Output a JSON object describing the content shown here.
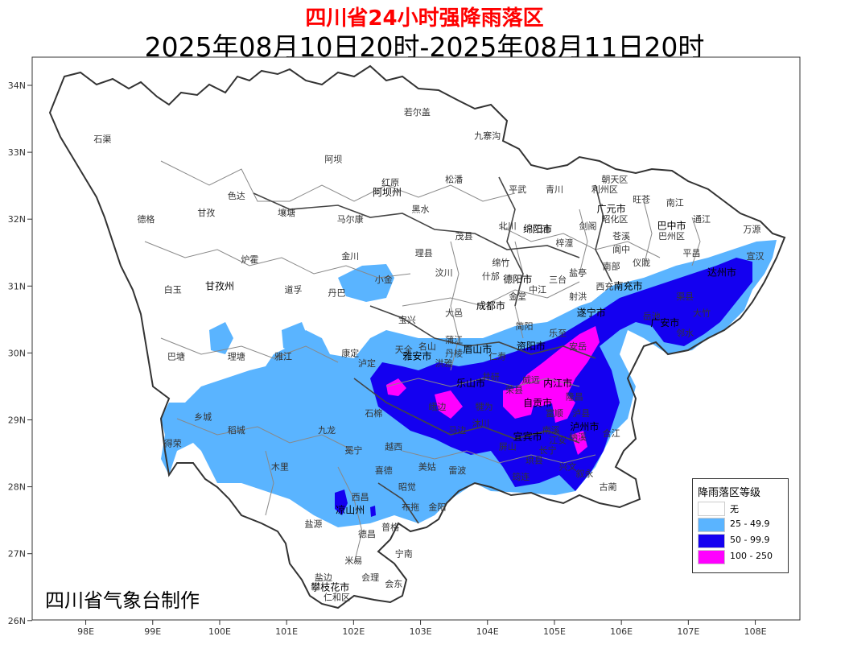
{
  "title": "四川省24小时强降雨落区",
  "period": "2025年08月10日20时-2025年08月11日20时",
  "credit": "四川省气象台制作",
  "colors": {
    "none": "#ffffff",
    "light": "#5ab4ff",
    "medium": "#1400f0",
    "heavy": "#ff00ff",
    "border": "#333333",
    "county_line": "#888888"
  },
  "legend": {
    "title": "降雨落区等级",
    "items": [
      {
        "label": "无",
        "color": "#ffffff"
      },
      {
        "label": "25 - 49.9",
        "color": "#5ab4ff"
      },
      {
        "label": "50 - 99.9",
        "color": "#1400f0"
      },
      {
        "label": "100 - 250",
        "color": "#ff00ff"
      }
    ]
  },
  "axes": {
    "lat_ticks": [
      "34N",
      "33N",
      "32N",
      "31N",
      "30N",
      "29N",
      "28N",
      "27N",
      "26N"
    ],
    "lon_ticks": [
      "98E",
      "99E",
      "100E",
      "101E",
      "102E",
      "103E",
      "104E",
      "105E",
      "106E",
      "107E",
      "108E"
    ]
  },
  "places": [
    {
      "name": "若尔盖",
      "lon": 102.95,
      "lat": 33.6,
      "main": false
    },
    {
      "name": "石渠",
      "lon": 98.25,
      "lat": 33.2,
      "main": false
    },
    {
      "name": "阿坝",
      "lon": 101.7,
      "lat": 32.9,
      "main": false
    },
    {
      "name": "九寨沟",
      "lon": 104.0,
      "lat": 33.25,
      "main": false
    },
    {
      "name": "红原",
      "lon": 102.55,
      "lat": 32.55,
      "main": false
    },
    {
      "name": "松潘",
      "lon": 103.5,
      "lat": 32.6,
      "main": false
    },
    {
      "name": "阿坝州",
      "lon": 102.5,
      "lat": 32.4,
      "main": true
    },
    {
      "name": "平武",
      "lon": 104.45,
      "lat": 32.45,
      "main": false
    },
    {
      "name": "青川",
      "lon": 105.0,
      "lat": 32.45,
      "main": false
    },
    {
      "name": "朝天区",
      "lon": 105.9,
      "lat": 32.6,
      "main": false
    },
    {
      "name": "利州区",
      "lon": 105.75,
      "lat": 32.45,
      "main": false
    },
    {
      "name": "旺苍",
      "lon": 106.3,
      "lat": 32.3,
      "main": false
    },
    {
      "name": "南江",
      "lon": 106.8,
      "lat": 32.25,
      "main": false
    },
    {
      "name": "通江",
      "lon": 107.2,
      "lat": 32.0,
      "main": false
    },
    {
      "name": "万源",
      "lon": 107.95,
      "lat": 31.85,
      "main": false
    },
    {
      "name": "巴中市",
      "lon": 106.75,
      "lat": 31.9,
      "main": true
    },
    {
      "name": "巴州区",
      "lon": 106.75,
      "lat": 31.75,
      "main": false
    },
    {
      "name": "广元市",
      "lon": 105.85,
      "lat": 32.15,
      "main": true
    },
    {
      "name": "昭化区",
      "lon": 105.9,
      "lat": 32.0,
      "main": false
    },
    {
      "name": "剑阁",
      "lon": 105.5,
      "lat": 31.9,
      "main": false
    },
    {
      "name": "苍溪",
      "lon": 106.0,
      "lat": 31.75,
      "main": false
    },
    {
      "name": "阆中",
      "lon": 106.0,
      "lat": 31.55,
      "main": false
    },
    {
      "name": "德格",
      "lon": 98.9,
      "lat": 32.0,
      "main": false
    },
    {
      "name": "甘孜",
      "lon": 99.8,
      "lat": 32.1,
      "main": false
    },
    {
      "name": "色达",
      "lon": 100.25,
      "lat": 32.35,
      "main": false
    },
    {
      "name": "壤塘",
      "lon": 101.0,
      "lat": 32.1,
      "main": false
    },
    {
      "name": "马尔康",
      "lon": 101.95,
      "lat": 32.0,
      "main": false
    },
    {
      "name": "黑水",
      "lon": 103.0,
      "lat": 32.15,
      "main": false
    },
    {
      "name": "茂县",
      "lon": 103.65,
      "lat": 31.75,
      "main": false
    },
    {
      "name": "北川",
      "lon": 104.3,
      "lat": 31.9,
      "main": false
    },
    {
      "name": "绵阳市",
      "lon": 104.75,
      "lat": 31.85,
      "main": true
    },
    {
      "name": "梓潼",
      "lon": 105.15,
      "lat": 31.65,
      "main": false
    },
    {
      "name": "江油",
      "lon": 104.8,
      "lat": 31.85,
      "main": false
    },
    {
      "name": "炉霍",
      "lon": 100.45,
      "lat": 31.4,
      "main": false
    },
    {
      "name": "甘孜州",
      "lon": 100.0,
      "lat": 31.0,
      "main": true
    },
    {
      "name": "白玉",
      "lon": 99.3,
      "lat": 30.95,
      "main": false
    },
    {
      "name": "道孚",
      "lon": 101.1,
      "lat": 30.95,
      "main": false
    },
    {
      "name": "金川",
      "lon": 101.95,
      "lat": 31.45,
      "main": false
    },
    {
      "name": "理县",
      "lon": 103.05,
      "lat": 31.5,
      "main": false
    },
    {
      "name": "汶川",
      "lon": 103.35,
      "lat": 31.2,
      "main": false
    },
    {
      "name": "小金",
      "lon": 102.45,
      "lat": 31.1,
      "main": false
    },
    {
      "name": "丹巴",
      "lon": 101.75,
      "lat": 30.9,
      "main": false
    },
    {
      "name": "绵竹",
      "lon": 104.2,
      "lat": 31.35,
      "main": false
    },
    {
      "name": "什邡",
      "lon": 104.05,
      "lat": 31.15,
      "main": false
    },
    {
      "name": "德阳市",
      "lon": 104.45,
      "lat": 31.1,
      "main": true
    },
    {
      "name": "中江",
      "lon": 104.75,
      "lat": 30.95,
      "main": false
    },
    {
      "name": "三台",
      "lon": 105.05,
      "lat": 31.1,
      "main": false
    },
    {
      "name": "盐亭",
      "lon": 105.35,
      "lat": 31.2,
      "main": false
    },
    {
      "name": "南部",
      "lon": 105.85,
      "lat": 31.3,
      "main": false
    },
    {
      "name": "仪陇",
      "lon": 106.3,
      "lat": 31.35,
      "main": false
    },
    {
      "name": "平昌",
      "lon": 107.05,
      "lat": 31.5,
      "main": false
    },
    {
      "name": "达州市",
      "lon": 107.5,
      "lat": 31.2,
      "main": true
    },
    {
      "name": "宣汉",
      "lon": 108.0,
      "lat": 31.45,
      "main": false
    },
    {
      "name": "西充",
      "lon": 105.75,
      "lat": 31.0,
      "main": false
    },
    {
      "name": "南充市",
      "lon": 106.1,
      "lat": 31.0,
      "main": true
    },
    {
      "name": "渠县",
      "lon": 106.95,
      "lat": 30.85,
      "main": false
    },
    {
      "name": "大竹",
      "lon": 107.2,
      "lat": 30.6,
      "main": false
    },
    {
      "name": "射洪",
      "lon": 105.35,
      "lat": 30.85,
      "main": false
    },
    {
      "name": "遂宁市",
      "lon": 105.55,
      "lat": 30.6,
      "main": true
    },
    {
      "name": "岳池",
      "lon": 106.45,
      "lat": 30.55,
      "main": false
    },
    {
      "name": "广安市",
      "lon": 106.65,
      "lat": 30.45,
      "main": true
    },
    {
      "name": "邻水",
      "lon": 106.95,
      "lat": 30.3,
      "main": false
    },
    {
      "name": "宝兴",
      "lon": 102.8,
      "lat": 30.5,
      "main": false
    },
    {
      "name": "大邑",
      "lon": 103.5,
      "lat": 30.6,
      "main": false
    },
    {
      "name": "成都市",
      "lon": 104.05,
      "lat": 30.7,
      "main": true
    },
    {
      "name": "金堂",
      "lon": 104.45,
      "lat": 30.85,
      "main": false
    },
    {
      "name": "蒲江",
      "lon": 103.5,
      "lat": 30.2,
      "main": false
    },
    {
      "name": "简阳",
      "lon": 104.55,
      "lat": 30.4,
      "main": false
    },
    {
      "name": "乐至",
      "lon": 105.05,
      "lat": 30.3,
      "main": false
    },
    {
      "name": "安岳",
      "lon": 105.35,
      "lat": 30.1,
      "main": false
    },
    {
      "name": "丹棱",
      "lon": 103.5,
      "lat": 30.0,
      "main": false
    },
    {
      "name": "眉山市",
      "lon": 103.85,
      "lat": 30.05,
      "main": true
    },
    {
      "name": "仁寿",
      "lon": 104.15,
      "lat": 29.95,
      "main": false
    },
    {
      "name": "资阳市",
      "lon": 104.65,
      "lat": 30.1,
      "main": true
    },
    {
      "name": "天全",
      "lon": 102.75,
      "lat": 30.05,
      "main": false
    },
    {
      "name": "雅安市",
      "lon": 102.95,
      "lat": 29.95,
      "main": true
    },
    {
      "name": "名山",
      "lon": 103.1,
      "lat": 30.1,
      "main": false
    },
    {
      "name": "洪雅",
      "lon": 103.35,
      "lat": 29.85,
      "main": false
    },
    {
      "name": "乐山市",
      "lon": 103.75,
      "lat": 29.55,
      "main": true
    },
    {
      "name": "井研",
      "lon": 104.05,
      "lat": 29.65,
      "main": false
    },
    {
      "name": "威远",
      "lon": 104.65,
      "lat": 29.6,
      "main": false
    },
    {
      "name": "内江市",
      "lon": 105.05,
      "lat": 29.55,
      "main": true
    },
    {
      "name": "隆昌",
      "lon": 105.3,
      "lat": 29.35,
      "main": false
    },
    {
      "name": "荣县",
      "lon": 104.4,
      "lat": 29.45,
      "main": false
    },
    {
      "name": "自贡市",
      "lon": 104.75,
      "lat": 29.25,
      "main": true
    },
    {
      "name": "富顺",
      "lon": 105.0,
      "lat": 29.1,
      "main": false
    },
    {
      "name": "泸县",
      "lon": 105.4,
      "lat": 29.1,
      "main": false
    },
    {
      "name": "犍为",
      "lon": 103.95,
      "lat": 29.2,
      "main": false
    },
    {
      "name": "沐川",
      "lon": 103.9,
      "lat": 28.95,
      "main": false
    },
    {
      "name": "峨边",
      "lon": 103.25,
      "lat": 29.2,
      "main": false
    },
    {
      "name": "马边",
      "lon": 103.55,
      "lat": 28.85,
      "main": false
    },
    {
      "name": "宜宾市",
      "lon": 104.6,
      "lat": 28.75,
      "main": true
    },
    {
      "name": "南溪",
      "lon": 104.95,
      "lat": 28.85,
      "main": false
    },
    {
      "name": "江安",
      "lon": 105.05,
      "lat": 28.7,
      "main": false
    },
    {
      "name": "长宁",
      "lon": 104.9,
      "lat": 28.55,
      "main": false
    },
    {
      "name": "泸州市",
      "lon": 105.45,
      "lat": 28.9,
      "main": true
    },
    {
      "name": "合江",
      "lon": 105.85,
      "lat": 28.8,
      "main": false
    },
    {
      "name": "纳溪",
      "lon": 105.35,
      "lat": 28.75,
      "main": false
    },
    {
      "name": "叙永",
      "lon": 105.45,
      "lat": 28.2,
      "main": false
    },
    {
      "name": "古蔺",
      "lon": 105.8,
      "lat": 28.0,
      "main": false
    },
    {
      "name": "兴文",
      "lon": 105.2,
      "lat": 28.3,
      "main": false
    },
    {
      "name": "筠连",
      "lon": 104.5,
      "lat": 28.15,
      "main": false
    },
    {
      "name": "珙县",
      "lon": 104.7,
      "lat": 28.4,
      "main": false
    },
    {
      "name": "屏山",
      "lon": 104.3,
      "lat": 28.6,
      "main": false
    },
    {
      "name": "雷波",
      "lon": 103.55,
      "lat": 28.25,
      "main": false
    },
    {
      "name": "康定",
      "lon": 101.95,
      "lat": 30.0,
      "main": false
    },
    {
      "name": "泸定",
      "lon": 102.2,
      "lat": 29.85,
      "main": false
    },
    {
      "name": "雅江",
      "lon": 100.95,
      "lat": 29.95,
      "main": false
    },
    {
      "name": "理塘",
      "lon": 100.25,
      "lat": 29.95,
      "main": false
    },
    {
      "name": "巴塘",
      "lon": 99.35,
      "lat": 29.95,
      "main": false
    },
    {
      "name": "乡城",
      "lon": 99.75,
      "lat": 29.05,
      "main": false
    },
    {
      "name": "稻城",
      "lon": 100.25,
      "lat": 28.85,
      "main": false
    },
    {
      "name": "得荣",
      "lon": 99.3,
      "lat": 28.65,
      "main": false
    },
    {
      "name": "九龙",
      "lon": 101.6,
      "lat": 28.85,
      "main": false
    },
    {
      "name": "冕宁",
      "lon": 102.0,
      "lat": 28.55,
      "main": false
    },
    {
      "name": "石棉",
      "lon": 102.3,
      "lat": 29.1,
      "main": false
    },
    {
      "name": "越西",
      "lon": 102.6,
      "lat": 28.6,
      "main": false
    },
    {
      "name": "美姑",
      "lon": 103.1,
      "lat": 28.3,
      "main": false
    },
    {
      "name": "喜德",
      "lon": 102.45,
      "lat": 28.25,
      "main": false
    },
    {
      "name": "昭觉",
      "lon": 102.8,
      "lat": 28.0,
      "main": false
    },
    {
      "name": "木里",
      "lon": 100.9,
      "lat": 28.3,
      "main": false
    },
    {
      "name": "盐源",
      "lon": 101.4,
      "lat": 27.45,
      "main": false
    },
    {
      "name": "西昌",
      "lon": 102.1,
      "lat": 27.85,
      "main": false
    },
    {
      "name": "凉山州",
      "lon": 101.95,
      "lat": 27.65,
      "main": true
    },
    {
      "name": "普格",
      "lon": 102.55,
      "lat": 27.4,
      "main": false
    },
    {
      "name": "布拖",
      "lon": 102.85,
      "lat": 27.7,
      "main": false
    },
    {
      "name": "金阳",
      "lon": 103.25,
      "lat": 27.7,
      "main": false
    },
    {
      "name": "德昌",
      "lon": 102.2,
      "lat": 27.3,
      "main": false
    },
    {
      "name": "宁南",
      "lon": 102.75,
      "lat": 27.0,
      "main": false
    },
    {
      "name": "米易",
      "lon": 102.0,
      "lat": 26.9,
      "main": false
    },
    {
      "name": "盐边",
      "lon": 101.55,
      "lat": 26.65,
      "main": false
    },
    {
      "name": "攀枝花市",
      "lon": 101.65,
      "lat": 26.5,
      "main": true
    },
    {
      "name": "会理",
      "lon": 102.25,
      "lat": 26.65,
      "main": false
    },
    {
      "name": "会东",
      "lon": 102.6,
      "lat": 26.55,
      "main": false
    },
    {
      "name": "仁和区",
      "lon": 101.75,
      "lat": 26.35,
      "main": false
    }
  ]
}
